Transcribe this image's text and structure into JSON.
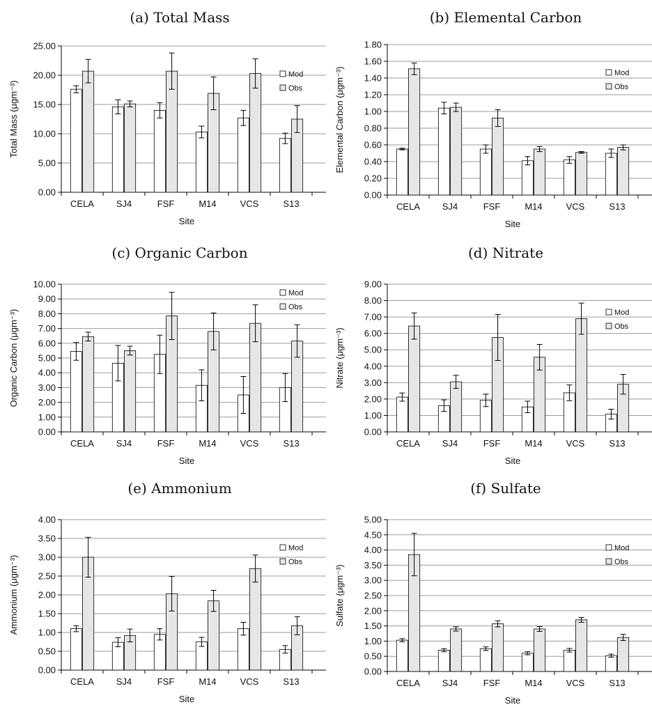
{
  "chart_data": [
    {
      "type": "bar",
      "title": "(a) Total Mass",
      "xlabel": "Site",
      "ylabel": "Total Mass (μgm⁻³)",
      "categories": [
        "CELA",
        "SJ4",
        "FSF",
        "M14",
        "VCS",
        "S13"
      ],
      "ylim": [
        0,
        25
      ],
      "yticks": [
        "0.00",
        "5.00",
        "10.00",
        "15.00",
        "20.00",
        "25.00"
      ],
      "series": [
        {
          "name": "Mod",
          "color": "#ffffff",
          "values": [
            17.6,
            14.6,
            14.0,
            10.3,
            12.7,
            9.2
          ],
          "errors": [
            0.6,
            1.2,
            1.3,
            1.0,
            1.3,
            0.9
          ]
        },
        {
          "name": "Obs",
          "color": "#e6e6e6",
          "values": [
            20.7,
            15.1,
            20.7,
            16.9,
            20.3,
            12.5
          ],
          "errors": [
            2.0,
            0.5,
            3.1,
            2.8,
            2.5,
            2.3
          ]
        }
      ],
      "legend": "right"
    },
    {
      "type": "bar",
      "title": "(b) Elemental Carbon",
      "xlabel": "Site",
      "ylabel": "Elemental Carbon (μgm⁻³)",
      "categories": [
        "CELA",
        "SJ4",
        "FSF",
        "M14",
        "VCS",
        "S13"
      ],
      "ylim": [
        0,
        1.8
      ],
      "yticks": [
        "0.00",
        "0.20",
        "0.40",
        "0.60",
        "0.80",
        "1.00",
        "1.20",
        "1.40",
        "1.60",
        "1.80"
      ],
      "series": [
        {
          "name": "Mod",
          "color": "#ffffff",
          "values": [
            0.55,
            1.04,
            0.55,
            0.41,
            0.42,
            0.5
          ],
          "errors": [
            0.01,
            0.07,
            0.05,
            0.05,
            0.04,
            0.05
          ]
        },
        {
          "name": "Obs",
          "color": "#e6e6e6",
          "values": [
            1.51,
            1.05,
            0.92,
            0.55,
            0.51,
            0.57
          ],
          "errors": [
            0.07,
            0.05,
            0.1,
            0.03,
            0.01,
            0.03
          ]
        }
      ],
      "legend": "right"
    },
    {
      "type": "bar",
      "title": "(c) Organic Carbon",
      "xlabel": "Site",
      "ylabel": "Organic Carbon (μgm⁻³)",
      "categories": [
        "CELA",
        "SJ4",
        "FSF",
        "M14",
        "VCS",
        "S13"
      ],
      "ylim": [
        0,
        10
      ],
      "yticks": [
        "0.00",
        "1.00",
        "2.00",
        "3.00",
        "4.00",
        "5.00",
        "6.00",
        "7.00",
        "8.00",
        "9.00",
        "10.00"
      ],
      "series": [
        {
          "name": "Mod",
          "color": "#ffffff",
          "values": [
            5.45,
            4.65,
            5.25,
            3.15,
            2.5,
            3.0
          ],
          "errors": [
            0.6,
            1.2,
            1.3,
            1.05,
            1.25,
            0.95
          ]
        },
        {
          "name": "Obs",
          "color": "#e6e6e6",
          "values": [
            6.45,
            5.5,
            7.85,
            6.8,
            7.35,
            6.15
          ],
          "errors": [
            0.3,
            0.3,
            1.6,
            1.25,
            1.25,
            1.1
          ]
        }
      ],
      "legend": "right"
    },
    {
      "type": "bar",
      "title": "(d) Nitrate",
      "xlabel": "Site",
      "ylabel": "Nitrate (μgm⁻³)",
      "categories": [
        "CELA",
        "SJ4",
        "FSF",
        "M14",
        "VCS",
        "S13"
      ],
      "ylim": [
        0,
        9
      ],
      "yticks": [
        "0.00",
        "1.00",
        "2.00",
        "3.00",
        "4.00",
        "5.00",
        "6.00",
        "7.00",
        "8.00",
        "9.00"
      ],
      "series": [
        {
          "name": "Mod",
          "color": "#ffffff",
          "values": [
            2.12,
            1.6,
            1.92,
            1.52,
            2.38,
            1.08
          ],
          "errors": [
            0.25,
            0.35,
            0.38,
            0.35,
            0.48,
            0.3
          ]
        },
        {
          "name": "Obs",
          "color": "#e6e6e6",
          "values": [
            6.45,
            3.05,
            5.75,
            4.55,
            6.9,
            2.9
          ],
          "errors": [
            0.8,
            0.4,
            1.4,
            0.78,
            0.95,
            0.6
          ]
        }
      ],
      "legend": "right"
    },
    {
      "type": "bar",
      "title": "(e) Ammonium",
      "xlabel": "Site",
      "ylabel": "Ammonium (μgm⁻³)",
      "categories": [
        "CELA",
        "SJ4",
        "FSF",
        "M14",
        "VCS",
        "S13"
      ],
      "ylim": [
        0,
        4
      ],
      "yticks": [
        "0.00",
        "0.50",
        "1.00",
        "1.50",
        "2.00",
        "2.50",
        "3.00",
        "3.50",
        "4.00"
      ],
      "series": [
        {
          "name": "Mod",
          "color": "#ffffff",
          "values": [
            1.1,
            0.74,
            0.95,
            0.75,
            1.1,
            0.55
          ],
          "errors": [
            0.08,
            0.12,
            0.15,
            0.12,
            0.17,
            0.1
          ]
        },
        {
          "name": "Obs",
          "color": "#e6e6e6",
          "values": [
            3.0,
            0.92,
            2.03,
            1.84,
            2.7,
            1.18
          ],
          "errors": [
            0.53,
            0.17,
            0.46,
            0.28,
            0.36,
            0.24
          ]
        }
      ],
      "legend": "right"
    },
    {
      "type": "bar",
      "title": "(f) Sulfate",
      "xlabel": "Site",
      "ylabel": "Sulfate (μgm⁻³)",
      "categories": [
        "CELA",
        "SJ4",
        "FSF",
        "M14",
        "VCS",
        "S13"
      ],
      "ylim": [
        0,
        5
      ],
      "yticks": [
        "0.00",
        "0.50",
        "1.00",
        "1.50",
        "2.00",
        "2.50",
        "3.00",
        "3.50",
        "4.00",
        "4.50",
        "5.00"
      ],
      "series": [
        {
          "name": "Mod",
          "color": "#ffffff",
          "values": [
            1.03,
            0.7,
            0.75,
            0.6,
            0.7,
            0.52
          ],
          "errors": [
            0.05,
            0.05,
            0.06,
            0.05,
            0.06,
            0.05
          ]
        },
        {
          "name": "Obs",
          "color": "#e6e6e6",
          "values": [
            3.85,
            1.4,
            1.57,
            1.4,
            1.7,
            1.12
          ],
          "errors": [
            0.7,
            0.07,
            0.1,
            0.08,
            0.08,
            0.1
          ]
        }
      ],
      "legend": "right"
    }
  ]
}
